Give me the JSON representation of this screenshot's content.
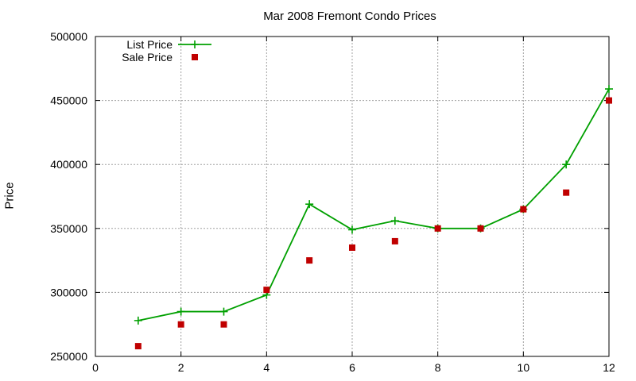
{
  "chart_data": {
    "type": "line",
    "title": "Mar 2008 Fremont Condo Prices",
    "xlabel": "",
    "ylabel": "Price",
    "xlim": [
      0,
      12
    ],
    "ylim": [
      250000,
      500000
    ],
    "x_ticks": [
      0,
      2,
      4,
      6,
      8,
      10,
      12
    ],
    "y_ticks": [
      250000,
      300000,
      350000,
      400000,
      450000,
      500000
    ],
    "grid": true,
    "legend": "top-left",
    "series": [
      {
        "name": "List Price",
        "style": "linespoints",
        "marker": "plus",
        "color": "#00a000",
        "x": [
          1,
          2,
          3,
          4,
          5,
          6,
          7,
          8,
          9,
          10,
          11,
          12
        ],
        "y": [
          278000,
          285000,
          285000,
          298000,
          369000,
          349000,
          356000,
          350000,
          350000,
          365000,
          400000,
          459000
        ]
      },
      {
        "name": "Sale Price",
        "style": "points",
        "marker": "square",
        "color": "#c00000",
        "x": [
          1,
          2,
          3,
          4,
          5,
          6,
          7,
          8,
          9,
          10,
          11,
          12
        ],
        "y": [
          258000,
          275000,
          275000,
          302000,
          325000,
          335000,
          340000,
          350000,
          350000,
          365000,
          378000,
          450000
        ]
      }
    ]
  }
}
